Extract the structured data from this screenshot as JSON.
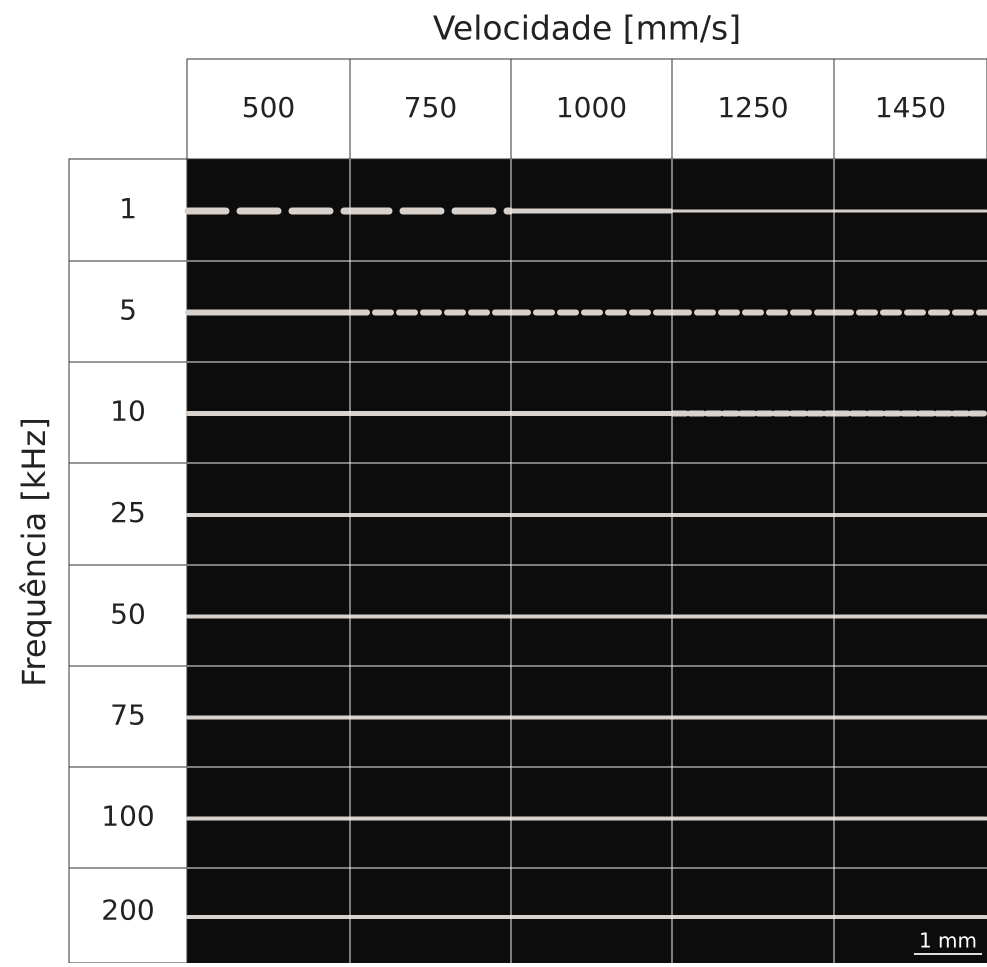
{
  "title": "Velocidade [mm/s]",
  "y_label": "Frequência [kHz]",
  "columns": [
    "500",
    "750",
    "1000",
    "1250",
    "1450"
  ],
  "rows": [
    "1",
    "5",
    "10",
    "25",
    "50",
    "75",
    "100",
    "200"
  ],
  "scale_bar": "1 mm"
}
